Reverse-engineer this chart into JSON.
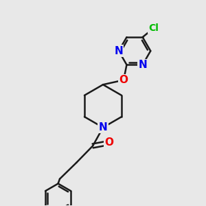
{
  "bg_color": "#e8e8e8",
  "bond_color": "#1a1a1a",
  "N_color": "#0000ee",
  "O_color": "#ee0000",
  "Cl_color": "#00bb00",
  "line_width": 1.8,
  "font_size_atom": 11,
  "font_size_cl": 10,
  "xlim": [
    0,
    10
  ],
  "ylim": [
    0,
    10
  ]
}
